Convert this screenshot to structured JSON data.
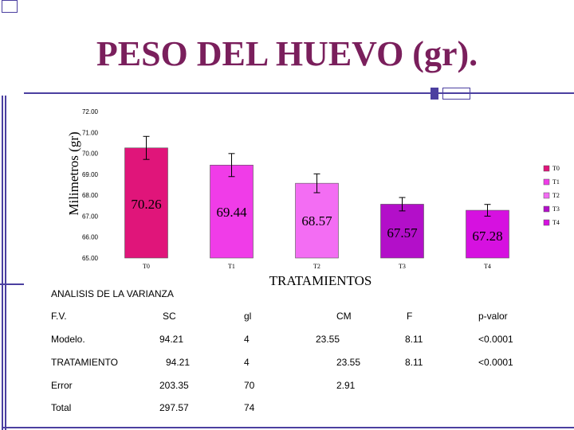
{
  "slide_title": "PESO DEL HUEVO (gr).",
  "chart_data": {
    "type": "bar",
    "ylabel": "Milimetros (gr)",
    "xlabel": "TRATAMIENTOS",
    "ylim": [
      65.0,
      72.0
    ],
    "yticks": [
      "72.00",
      "71.00",
      "70.00",
      "69.00",
      "68.00",
      "67.00",
      "66.00",
      "65.00"
    ],
    "categories": [
      "T0",
      "T1",
      "T2",
      "T3",
      "T4"
    ],
    "values": [
      70.26,
      69.44,
      68.57,
      67.57,
      67.28
    ],
    "value_labels": [
      "70.26",
      "69.44",
      "68.57",
      "67.57",
      "67.28"
    ],
    "error": [
      0.55,
      0.55,
      0.45,
      0.32,
      0.28
    ],
    "colors": [
      "#e0157a",
      "#f03ce8",
      "#f36df3",
      "#b30fc9",
      "#d611e0"
    ],
    "legend": [
      "T0",
      "T1",
      "T2",
      "T3",
      "T4"
    ],
    "legend_position": "right"
  },
  "anova": {
    "title": "ANALISIS DE LA VARIANZA",
    "headers": [
      "F.V.",
      "SC",
      "gl",
      "CM",
      "F",
      "p-valor"
    ],
    "rows": [
      [
        "Modelo.",
        "94.21",
        "4",
        "23.55",
        "8.11",
        "<0.0001"
      ],
      [
        "TRATAMIENTO",
        "94.21",
        "4",
        "23.55",
        "8.11",
        "<0.0001"
      ],
      [
        "Error",
        "203.35",
        "70",
        "2.91",
        "",
        ""
      ],
      [
        "Total",
        "297.57",
        "74",
        "",
        "",
        ""
      ]
    ]
  }
}
